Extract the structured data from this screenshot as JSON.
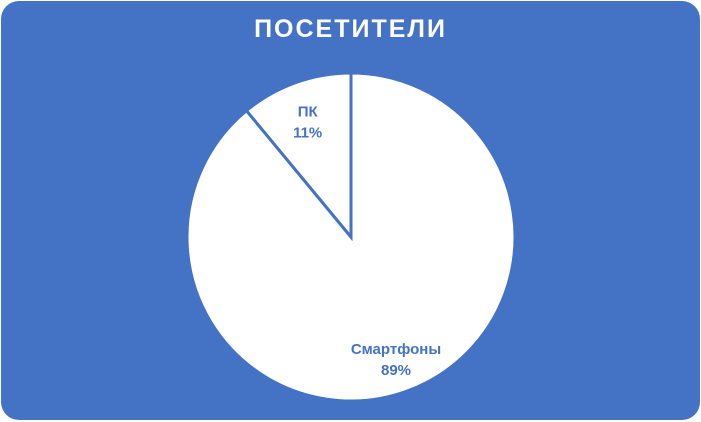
{
  "chart_data": {
    "type": "pie",
    "title": "ПОСЕТИТЕЛИ",
    "slices": [
      {
        "label": "Смартфоны",
        "value": 89,
        "value_label": "89%"
      },
      {
        "label": "ПК",
        "value": 11,
        "value_label": "11%"
      }
    ],
    "colors": {
      "background": "#4472C4",
      "slice_fill": "#FFFFFF",
      "label": "#4472C4"
    },
    "legend": "none",
    "data_labels": true
  }
}
